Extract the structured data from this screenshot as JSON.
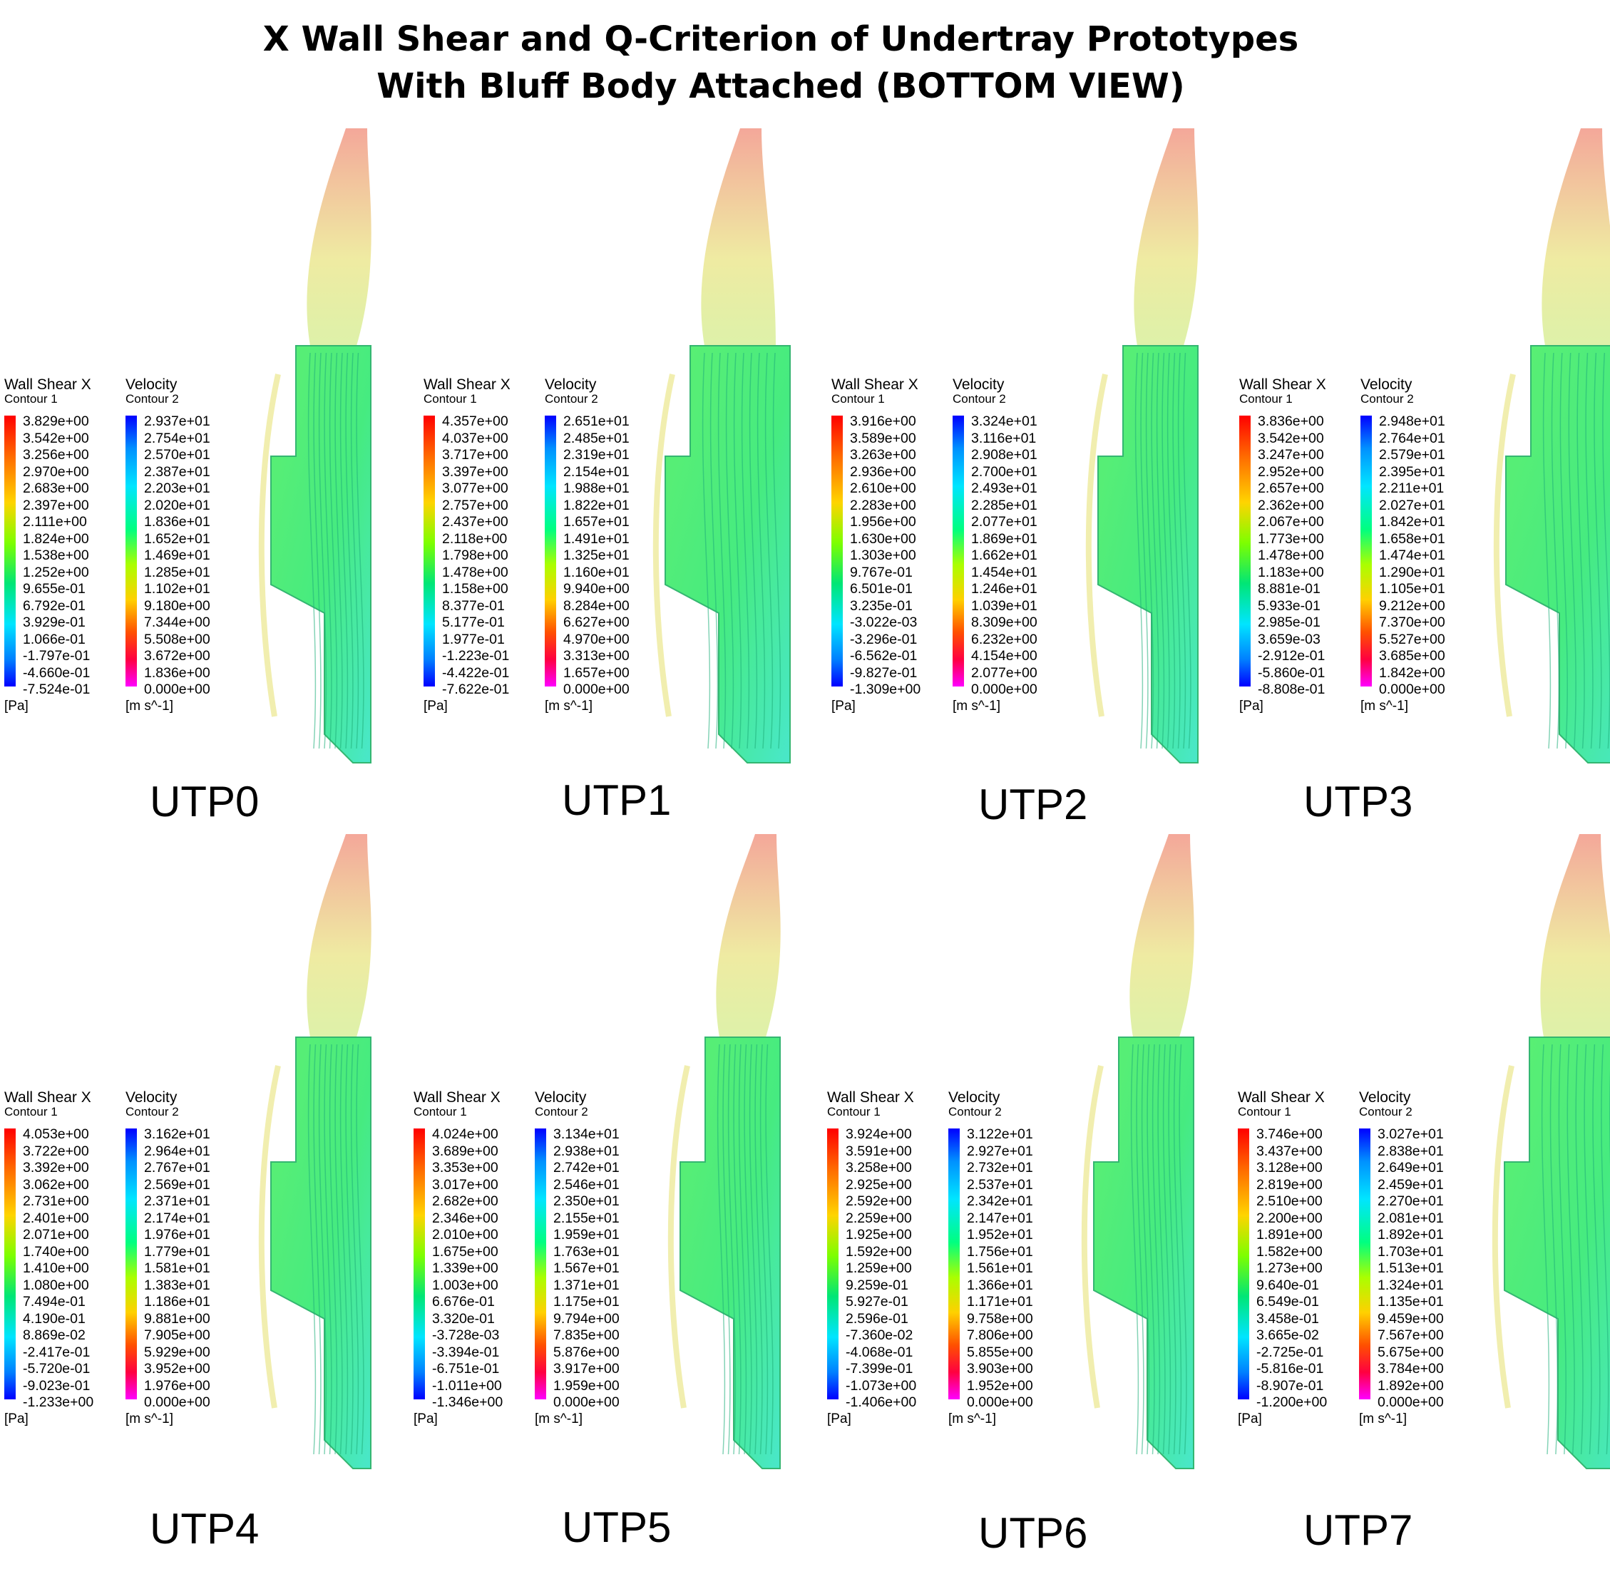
{
  "title": {
    "line1": "X Wall Shear and Q-Criterion of Undertray Prototypes",
    "line2": "With Bluff Body Attached (BOTTOM VIEW)"
  },
  "legend_common": {
    "shear_title": "Wall Shear X",
    "shear_sub": "Contour 1",
    "shear_unit": "[Pa]",
    "vel_title": "Velocity",
    "vel_sub": "Contour 2",
    "vel_unit": "[m s^-1]"
  },
  "colors": {
    "shear_scale": [
      "#ff0000",
      "#ff6a00",
      "#ffd400",
      "#7dff00",
      "#00e676",
      "#00e5ff",
      "#0080ff",
      "#0000ff"
    ],
    "velocity_scale": [
      "#0000ff",
      "#0090ff",
      "#00e5ff",
      "#00ff80",
      "#aaff00",
      "#ffd000",
      "#ff5000",
      "#ff0040",
      "#ff00ff"
    ],
    "body_surface": "#3dea7a",
    "vortex_warm": "#f08a78",
    "vortex_yellow": "#e8e27a"
  },
  "panels": [
    {
      "label": "UTP0",
      "shear": [
        "3.829e+00",
        "3.542e+00",
        "3.256e+00",
        "2.970e+00",
        "2.683e+00",
        "2.397e+00",
        "2.111e+00",
        "1.824e+00",
        "1.538e+00",
        "1.252e+00",
        "9.655e-01",
        "6.792e-01",
        "3.929e-01",
        "1.066e-01",
        "-1.797e-01",
        "-4.660e-01",
        "-7.524e-01"
      ],
      "velocity": [
        "2.937e+01",
        "2.754e+01",
        "2.570e+01",
        "2.387e+01",
        "2.203e+01",
        "2.020e+01",
        "1.836e+01",
        "1.652e+01",
        "1.469e+01",
        "1.285e+01",
        "1.102e+01",
        "9.180e+00",
        "7.344e+00",
        "5.508e+00",
        "3.672e+00",
        "1.836e+00",
        "0.000e+00"
      ]
    },
    {
      "label": "UTP1",
      "shear": [
        "4.357e+00",
        "4.037e+00",
        "3.717e+00",
        "3.397e+00",
        "3.077e+00",
        "2.757e+00",
        "2.437e+00",
        "2.118e+00",
        "1.798e+00",
        "1.478e+00",
        "1.158e+00",
        "8.377e-01",
        "5.177e-01",
        "1.977e-01",
        "-1.223e-01",
        "-4.422e-01",
        "-7.622e-01"
      ],
      "velocity": [
        "2.651e+01",
        "2.485e+01",
        "2.319e+01",
        "2.154e+01",
        "1.988e+01",
        "1.822e+01",
        "1.657e+01",
        "1.491e+01",
        "1.325e+01",
        "1.160e+01",
        "9.940e+00",
        "8.284e+00",
        "6.627e+00",
        "4.970e+00",
        "3.313e+00",
        "1.657e+00",
        "0.000e+00"
      ]
    },
    {
      "label": "UTP2",
      "shear": [
        "3.916e+00",
        "3.589e+00",
        "3.263e+00",
        "2.936e+00",
        "2.610e+00",
        "2.283e+00",
        "1.956e+00",
        "1.630e+00",
        "1.303e+00",
        "9.767e-01",
        "6.501e-01",
        "3.235e-01",
        "-3.022e-03",
        "-3.296e-01",
        "-6.562e-01",
        "-9.827e-01",
        "-1.309e+00"
      ],
      "velocity": [
        "3.324e+01",
        "3.116e+01",
        "2.908e+01",
        "2.700e+01",
        "2.493e+01",
        "2.285e+01",
        "2.077e+01",
        "1.869e+01",
        "1.662e+01",
        "1.454e+01",
        "1.246e+01",
        "1.039e+01",
        "8.309e+00",
        "6.232e+00",
        "4.154e+00",
        "2.077e+00",
        "0.000e+00"
      ]
    },
    {
      "label": "UTP3",
      "shear": [
        "3.836e+00",
        "3.542e+00",
        "3.247e+00",
        "2.952e+00",
        "2.657e+00",
        "2.362e+00",
        "2.067e+00",
        "1.773e+00",
        "1.478e+00",
        "1.183e+00",
        "8.881e-01",
        "5.933e-01",
        "2.985e-01",
        "3.659e-03",
        "-2.912e-01",
        "-5.860e-01",
        "-8.808e-01"
      ],
      "velocity": [
        "2.948e+01",
        "2.764e+01",
        "2.579e+01",
        "2.395e+01",
        "2.211e+01",
        "2.027e+01",
        "1.842e+01",
        "1.658e+01",
        "1.474e+01",
        "1.290e+01",
        "1.105e+01",
        "9.212e+00",
        "7.370e+00",
        "5.527e+00",
        "3.685e+00",
        "1.842e+00",
        "0.000e+00"
      ]
    },
    {
      "label": "UTP4",
      "shear": [
        "4.053e+00",
        "3.722e+00",
        "3.392e+00",
        "3.062e+00",
        "2.731e+00",
        "2.401e+00",
        "2.071e+00",
        "1.740e+00",
        "1.410e+00",
        "1.080e+00",
        "7.494e-01",
        "4.190e-01",
        "8.869e-02",
        "-2.417e-01",
        "-5.720e-01",
        "-9.023e-01",
        "-1.233e+00"
      ],
      "velocity": [
        "3.162e+01",
        "2.964e+01",
        "2.767e+01",
        "2.569e+01",
        "2.371e+01",
        "2.174e+01",
        "1.976e+01",
        "1.779e+01",
        "1.581e+01",
        "1.383e+01",
        "1.186e+01",
        "9.881e+00",
        "7.905e+00",
        "5.929e+00",
        "3.952e+00",
        "1.976e+00",
        "0.000e+00"
      ]
    },
    {
      "label": "UTP5",
      "shear": [
        "4.024e+00",
        "3.689e+00",
        "3.353e+00",
        "3.017e+00",
        "2.682e+00",
        "2.346e+00",
        "2.010e+00",
        "1.675e+00",
        "1.339e+00",
        "1.003e+00",
        "6.676e-01",
        "3.320e-01",
        "-3.728e-03",
        "-3.394e-01",
        "-6.751e-01",
        "-1.011e+00",
        "-1.346e+00"
      ],
      "velocity": [
        "3.134e+01",
        "2.938e+01",
        "2.742e+01",
        "2.546e+01",
        "2.350e+01",
        "2.155e+01",
        "1.959e+01",
        "1.763e+01",
        "1.567e+01",
        "1.371e+01",
        "1.175e+01",
        "9.794e+00",
        "7.835e+00",
        "5.876e+00",
        "3.917e+00",
        "1.959e+00",
        "0.000e+00"
      ]
    },
    {
      "label": "UTP6",
      "shear": [
        "3.924e+00",
        "3.591e+00",
        "3.258e+00",
        "2.925e+00",
        "2.592e+00",
        "2.259e+00",
        "1.925e+00",
        "1.592e+00",
        "1.259e+00",
        "9.259e-01",
        "5.927e-01",
        "2.596e-01",
        "-7.360e-02",
        "-4.068e-01",
        "-7.399e-01",
        "-1.073e+00",
        "-1.406e+00"
      ],
      "velocity": [
        "3.122e+01",
        "2.927e+01",
        "2.732e+01",
        "2.537e+01",
        "2.342e+01",
        "2.147e+01",
        "1.952e+01",
        "1.756e+01",
        "1.561e+01",
        "1.366e+01",
        "1.171e+01",
        "9.758e+00",
        "7.806e+00",
        "5.855e+00",
        "3.903e+00",
        "1.952e+00",
        "0.000e+00"
      ]
    },
    {
      "label": "UTP7",
      "shear": [
        "3.746e+00",
        "3.437e+00",
        "3.128e+00",
        "2.819e+00",
        "2.510e+00",
        "2.200e+00",
        "1.891e+00",
        "1.582e+00",
        "1.273e+00",
        "9.640e-01",
        "6.549e-01",
        "3.458e-01",
        "3.665e-02",
        "-2.725e-01",
        "-5.816e-01",
        "-8.907e-01",
        "-1.200e+00"
      ],
      "velocity": [
        "3.027e+01",
        "2.838e+01",
        "2.649e+01",
        "2.459e+01",
        "2.270e+01",
        "2.081e+01",
        "1.892e+01",
        "1.703e+01",
        "1.513e+01",
        "1.324e+01",
        "1.135e+01",
        "9.459e+00",
        "7.567e+00",
        "5.675e+00",
        "3.784e+00",
        "1.892e+00",
        "0.000e+00"
      ]
    }
  ]
}
